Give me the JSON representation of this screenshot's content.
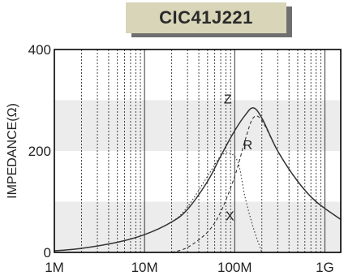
{
  "title": "CIC41J221",
  "chart_data": {
    "type": "line",
    "title": "CIC41J221",
    "xlabel": "",
    "ylabel": "IMPEDANCE(Ω)",
    "x_scale": "log",
    "xlim": [
      1000000,
      1500000000
    ],
    "ylim": [
      0,
      400
    ],
    "x_tick_labels": [
      "1M",
      "10M",
      "100M",
      "1G"
    ],
    "x_tick_values": [
      1000000,
      10000000,
      100000000,
      1000000000
    ],
    "y_tick_labels": [
      "0",
      "200",
      "400"
    ],
    "y_tick_values": [
      0,
      200,
      400
    ],
    "grid": true,
    "band_color": "#ececec",
    "bands": [
      [
        0,
        100
      ],
      [
        200,
        300
      ]
    ],
    "series": [
      {
        "name": "Z",
        "style": "solid",
        "x": [
          1000000,
          2000000,
          5000000,
          10000000,
          20000000,
          30000000,
          50000000,
          70000000,
          100000000,
          130000000,
          160000000,
          200000000,
          300000000,
          500000000,
          800000000,
          1500000000
        ],
        "y": [
          3,
          8,
          20,
          35,
          60,
          85,
          140,
          190,
          240,
          270,
          285,
          265,
          200,
          140,
          100,
          65
        ]
      },
      {
        "name": "R",
        "style": "dashed",
        "x": [
          20000000,
          30000000,
          50000000,
          70000000,
          100000000,
          130000000,
          160000000,
          200000000,
          300000000,
          500000000,
          800000000,
          1500000000
        ],
        "y": [
          0,
          10,
          40,
          80,
          150,
          220,
          265,
          260,
          200,
          140,
          100,
          65
        ]
      },
      {
        "name": "X",
        "style": "dotted",
        "x": [
          1000000,
          2000000,
          5000000,
          10000000,
          20000000,
          30000000,
          50000000,
          70000000,
          90000000,
          110000000,
          130000000,
          160000000,
          200000000
        ],
        "y": [
          3,
          8,
          20,
          35,
          60,
          90,
          150,
          190,
          195,
          175,
          110,
          50,
          0
        ]
      }
    ]
  }
}
